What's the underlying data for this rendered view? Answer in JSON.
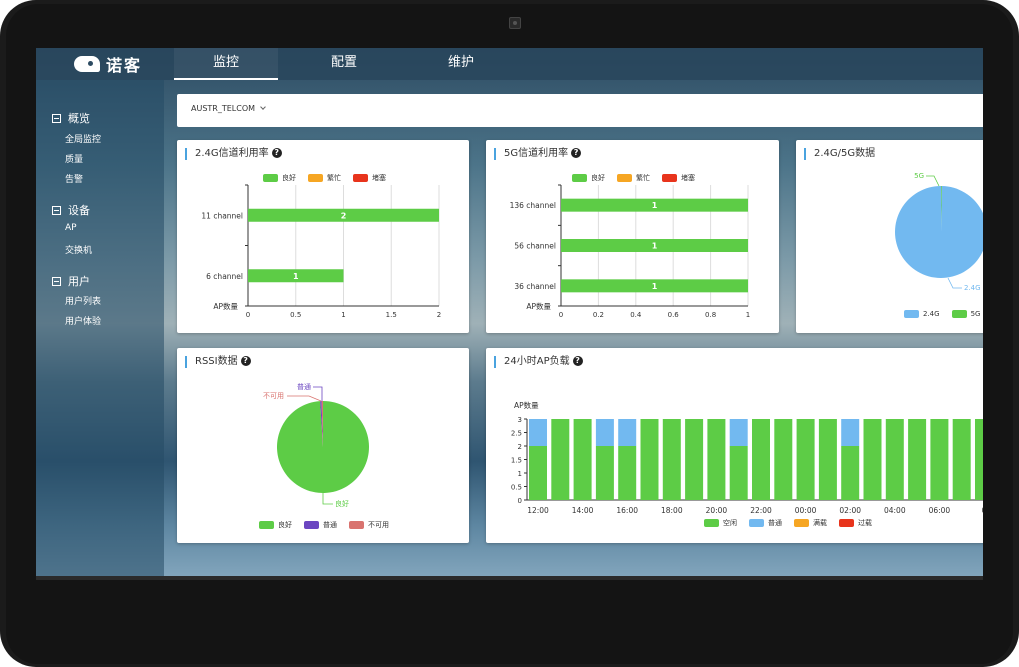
{
  "app": {
    "logo_text": "诺客"
  },
  "nav": {
    "tabs": [
      {
        "label": "监控"
      },
      {
        "label": "配置"
      },
      {
        "label": "维护"
      }
    ]
  },
  "sidebar": {
    "groups": [
      {
        "label": "概览",
        "items": [
          {
            "label": "全局监控"
          },
          {
            "label": "质量"
          },
          {
            "label": "告警"
          }
        ]
      },
      {
        "label": "设备",
        "items": [
          {
            "label": "AP"
          },
          {
            "label": "交换机"
          }
        ]
      },
      {
        "label": "用户",
        "items": [
          {
            "label": "用户列表"
          },
          {
            "label": "用户体验"
          }
        ]
      }
    ]
  },
  "filter": {
    "selected": "AUSTR_TELCOM"
  },
  "colors": {
    "good": "#5dcc46",
    "busy": "#f6a623",
    "congested": "#e8341c",
    "blue": "#72b9f0",
    "normal": "#6b46c1",
    "unavailable": "#d9736f",
    "accent": "#4aa3df"
  },
  "cards": {
    "ch24": {
      "title": "2.4G信道利用率",
      "help": "?"
    },
    "ch5": {
      "title": "5G信道利用率",
      "help": "?"
    },
    "band": {
      "title": "2.4G/5G数据"
    },
    "rssi": {
      "title": "RSSI数据",
      "help": "?"
    },
    "apload": {
      "title": "24小时AP负载",
      "help": "?"
    }
  },
  "chart_data": [
    {
      "id": "ch24",
      "type": "bar",
      "orientation": "horizontal",
      "categories": [
        "11 channel",
        "6 channel"
      ],
      "values": [
        2,
        1
      ],
      "data_labels": [
        "2",
        "1"
      ],
      "legend": [
        "良好",
        "繁忙",
        "堵塞"
      ],
      "yaxis_name": "AP数量",
      "xlim": [
        0,
        2
      ],
      "xticks": [
        "0",
        "0.5",
        "1",
        "1.5",
        "2"
      ],
      "grid": true,
      "legend_position": "top"
    },
    {
      "id": "ch5",
      "type": "bar",
      "orientation": "horizontal",
      "categories": [
        "136 channel",
        "56 channel",
        "36 channel"
      ],
      "values": [
        1,
        1,
        1
      ],
      "data_labels": [
        "1",
        "1",
        "1"
      ],
      "legend": [
        "良好",
        "繁忙",
        "堵塞"
      ],
      "yaxis_name": "AP数量",
      "xlim": [
        0,
        1
      ],
      "xticks": [
        "0",
        "0.2",
        "0.4",
        "0.6",
        "0.8",
        "1"
      ],
      "grid": true,
      "legend_position": "top"
    },
    {
      "id": "band",
      "type": "pie",
      "slices": [
        {
          "label": "5G",
          "value": 0.3
        },
        {
          "label": "2.4G",
          "value": 99.7
        }
      ],
      "legend": [
        "2.4G",
        "5G"
      ],
      "legend_position": "bottom"
    },
    {
      "id": "rssi",
      "type": "pie",
      "slices": [
        {
          "label": "良好",
          "value": 99
        },
        {
          "label": "普通",
          "value": 0.5
        },
        {
          "label": "不可用",
          "value": 0.5
        }
      ],
      "legend": [
        "良好",
        "普通",
        "不可用"
      ],
      "legend_position": "bottom"
    },
    {
      "id": "apload",
      "type": "bar",
      "stacked": true,
      "ylabel": "AP数量",
      "ylim": [
        0,
        3
      ],
      "yticks": [
        "0",
        "0.5",
        "1",
        "1.5",
        "2",
        "2.5",
        "3"
      ],
      "xticks": [
        "12:00",
        "14:00",
        "16:00",
        "18:00",
        "20:00",
        "22:00",
        "00:00",
        "02:00",
        "04:00",
        "06:00",
        "0"
      ],
      "legend": [
        "空闲",
        "普通",
        "满载",
        "过载"
      ],
      "legend_position": "bottom",
      "series": [
        {
          "name": "空闲",
          "values": [
            2,
            3,
            3,
            2,
            2,
            3,
            3,
            3,
            3,
            2,
            3,
            3,
            3,
            3,
            2,
            3,
            3,
            3,
            3,
            3,
            3
          ]
        },
        {
          "name": "普通",
          "values": [
            1,
            0,
            0,
            1,
            1,
            0,
            0,
            0,
            0,
            1,
            0,
            0,
            0,
            0,
            1,
            0,
            0,
            0,
            0,
            0,
            0
          ]
        }
      ]
    }
  ]
}
